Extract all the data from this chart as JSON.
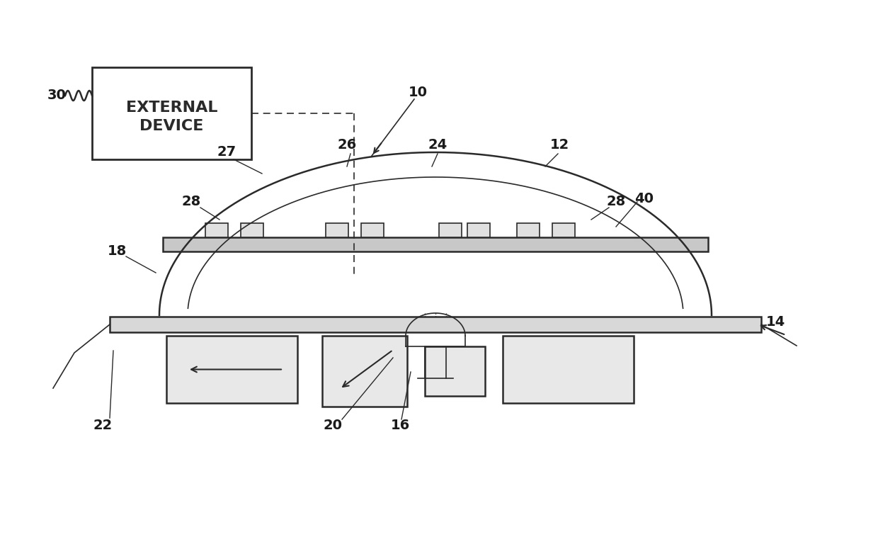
{
  "bg_color": "#ffffff",
  "line_color": "#2a2a2a",
  "label_color": "#1a1a1a",
  "fig_width": 12.4,
  "fig_height": 7.75
}
